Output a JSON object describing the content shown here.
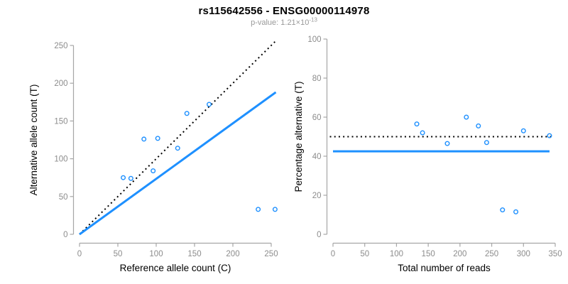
{
  "header": {
    "title": "rs115642556 - ENSG00000114978",
    "p_value_base": "p-value: 1.21×10",
    "p_value_exponent": "-13"
  },
  "colors": {
    "point_blue": "#1E90FF",
    "fit_line_blue": "#1E90FF",
    "dotted_line_black": "#000000",
    "axis_line_gray": "#A6A6A6",
    "tick_label_gray": "#8C8C8C",
    "axis_title_black": "#000000",
    "subtitle_gray": "#999999"
  },
  "chart_data": [
    {
      "type": "scatter",
      "name": "allele-counts-scatter",
      "xlabel": "Reference allele count (C)",
      "ylabel": "Alternative allele count (T)",
      "xlim": [
        0,
        255
      ],
      "ylim": [
        0,
        255
      ],
      "xticks": [
        0,
        50,
        100,
        150,
        200,
        250
      ],
      "yticks": [
        0,
        50,
        100,
        150,
        200,
        250
      ],
      "grid": false,
      "points": [
        [
          57,
          75
        ],
        [
          67,
          74
        ],
        [
          84,
          126
        ],
        [
          96,
          84
        ],
        [
          102,
          127
        ],
        [
          128,
          114
        ],
        [
          140,
          160
        ],
        [
          169,
          172
        ],
        [
          233,
          33
        ],
        [
          255,
          33
        ]
      ],
      "lines": [
        {
          "name": "identity-line",
          "style": "dotted",
          "color": "#000000",
          "from": [
            0,
            0
          ],
          "to": [
            257,
            257
          ]
        },
        {
          "name": "fit-line",
          "style": "solid",
          "color": "#1E90FF",
          "from": [
            0,
            0
          ],
          "to": [
            256,
            188
          ]
        }
      ]
    },
    {
      "type": "scatter",
      "name": "percentage-alternative-scatter",
      "xlabel": "Total number of reads",
      "ylabel": "Percentage alternative (T)",
      "xlim": [
        0,
        350
      ],
      "ylim": [
        0,
        100
      ],
      "xticks": [
        0,
        50,
        100,
        150,
        200,
        250,
        300,
        350
      ],
      "yticks": [
        0,
        20,
        40,
        60,
        80,
        100
      ],
      "grid": false,
      "points": [
        [
          132,
          56.5
        ],
        [
          141,
          52
        ],
        [
          180,
          46.5
        ],
        [
          210,
          60
        ],
        [
          229,
          55.5
        ],
        [
          242,
          47
        ],
        [
          267,
          12.5
        ],
        [
          288,
          11.5
        ],
        [
          300,
          53
        ],
        [
          341,
          50.5
        ]
      ],
      "lines": [
        {
          "name": "expected-50pct-line",
          "style": "dotted",
          "color": "#000000",
          "y": 50,
          "x_range": [
            -5,
            348
          ]
        },
        {
          "name": "observed-mean-line",
          "style": "solid",
          "color": "#1E90FF",
          "y": 42.5,
          "x_range": [
            0,
            341
          ]
        }
      ]
    }
  ]
}
